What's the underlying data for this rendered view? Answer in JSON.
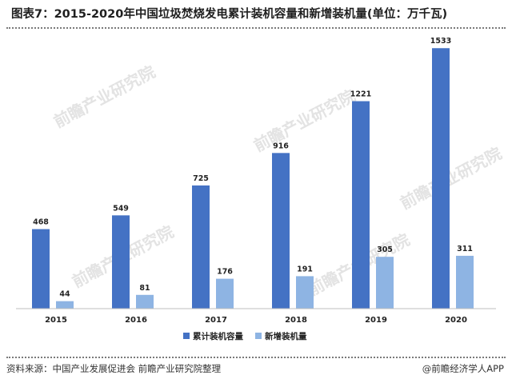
{
  "title": "图表7：2015-2020年中国垃圾焚烧发电累计装机容量和新增装机量(单位：万千瓦)",
  "source": "资料来源：中国产业发展促进会 前瞻产业研究院整理",
  "credit": "@前瞻经济学人APP",
  "watermark": "前瞻产业研究院",
  "chart_data": {
    "type": "bar",
    "categories": [
      "2015",
      "2016",
      "2017",
      "2018",
      "2019",
      "2020"
    ],
    "series": [
      {
        "name": "累计装机容量",
        "values": [
          468,
          549,
          725,
          916,
          1221,
          1533
        ],
        "color": "#4472c4"
      },
      {
        "name": "新增装机量",
        "values": [
          44,
          81,
          176,
          191,
          305,
          311
        ],
        "color": "#8eb4e3"
      }
    ],
    "ylim": [
      0,
      1600
    ],
    "legend": "bottom",
    "grid": false
  }
}
